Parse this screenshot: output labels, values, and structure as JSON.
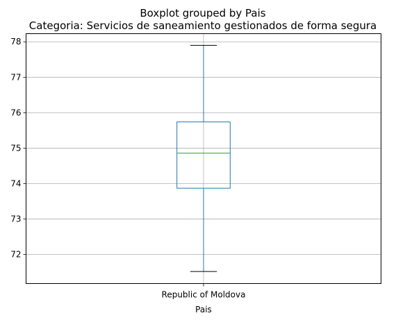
{
  "chart_data": {
    "type": "boxplot",
    "suptitle": "Boxplot grouped by Pais",
    "title": "Categoria: Servicios de saneamiento gestionados de forma segura",
    "xlabel": "Pais",
    "ylabel": "",
    "categories": [
      "Republic of Moldova"
    ],
    "boxes": [
      {
        "category": "Republic of Moldova",
        "whisker_low": 71.52,
        "q1": 73.87,
        "median": 74.86,
        "q3": 75.74,
        "whisker_high": 77.9
      }
    ],
    "yticks": [
      72,
      73,
      74,
      75,
      76,
      77,
      78
    ],
    "ylim": [
      71.18,
      78.23
    ],
    "grid": true,
    "colors": {
      "box": "#1f77b4",
      "median": "#2ca02c",
      "caps": "#000000",
      "grid": "#b0b0b0"
    }
  }
}
